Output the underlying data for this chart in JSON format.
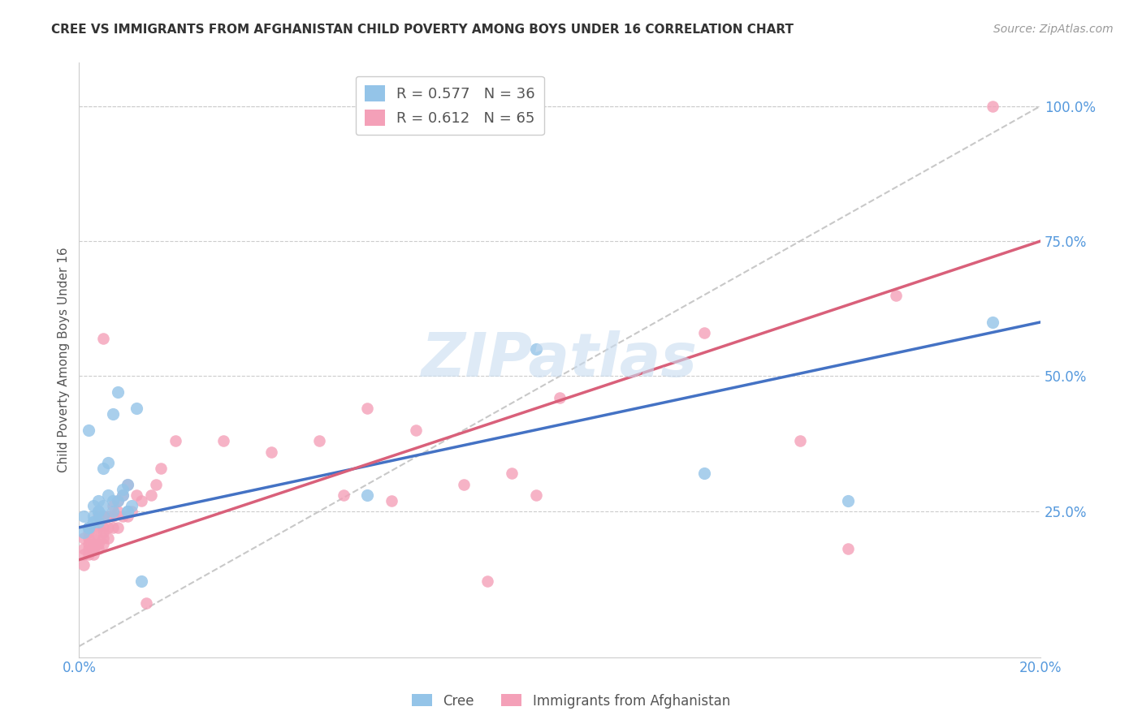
{
  "title": "CREE VS IMMIGRANTS FROM AFGHANISTAN CHILD POVERTY AMONG BOYS UNDER 16 CORRELATION CHART",
  "source": "Source: ZipAtlas.com",
  "ylabel": "Child Poverty Among Boys Under 16",
  "watermark": "ZIPatlas",
  "xlim": [
    0.0,
    0.2
  ],
  "ylim": [
    -0.02,
    1.08
  ],
  "xticks": [
    0.0,
    0.05,
    0.1,
    0.15,
    0.2
  ],
  "xtick_labels": [
    "0.0%",
    "",
    "",
    "",
    "20.0%"
  ],
  "ytick_right_positions": [
    0.25,
    0.5,
    0.75,
    1.0
  ],
  "ytick_right_labels": [
    "25.0%",
    "50.0%",
    "75.0%",
    "100.0%"
  ],
  "legend1_label": "R = 0.577   N = 36",
  "legend2_label": "R = 0.612   N = 65",
  "legend_color1": "#94C4E8",
  "legend_color2": "#F4A0B8",
  "title_color": "#333333",
  "source_color": "#999999",
  "grid_color": "#CCCCCC",
  "background_color": "#FFFFFF",
  "cree_color": "#94C4E8",
  "afg_color": "#F4A0B8",
  "trend_cree_color": "#4472C4",
  "trend_afg_color": "#D9607A",
  "diag_color": "#BBBBBB",
  "tick_label_color": "#5599DD",
  "cree_x": [
    0.001,
    0.001,
    0.002,
    0.002,
    0.002,
    0.003,
    0.003,
    0.003,
    0.003,
    0.004,
    0.004,
    0.004,
    0.004,
    0.005,
    0.005,
    0.005,
    0.006,
    0.006,
    0.007,
    0.007,
    0.007,
    0.008,
    0.008,
    0.009,
    0.009,
    0.01,
    0.01,
    0.01,
    0.011,
    0.012,
    0.013,
    0.06,
    0.095,
    0.13,
    0.16,
    0.19
  ],
  "cree_y": [
    0.21,
    0.24,
    0.22,
    0.22,
    0.4,
    0.23,
    0.23,
    0.24,
    0.26,
    0.23,
    0.25,
    0.25,
    0.27,
    0.24,
    0.26,
    0.33,
    0.28,
    0.34,
    0.25,
    0.27,
    0.43,
    0.27,
    0.47,
    0.28,
    0.29,
    0.25,
    0.25,
    0.3,
    0.26,
    0.44,
    0.12,
    0.28,
    0.55,
    0.32,
    0.27,
    0.6
  ],
  "afg_x": [
    0.001,
    0.001,
    0.001,
    0.001,
    0.002,
    0.002,
    0.002,
    0.002,
    0.002,
    0.002,
    0.003,
    0.003,
    0.003,
    0.003,
    0.003,
    0.003,
    0.004,
    0.004,
    0.004,
    0.004,
    0.004,
    0.005,
    0.005,
    0.005,
    0.005,
    0.005,
    0.005,
    0.006,
    0.006,
    0.006,
    0.007,
    0.007,
    0.007,
    0.008,
    0.008,
    0.008,
    0.009,
    0.009,
    0.01,
    0.01,
    0.011,
    0.012,
    0.013,
    0.014,
    0.015,
    0.016,
    0.017,
    0.02,
    0.03,
    0.04,
    0.05,
    0.055,
    0.06,
    0.065,
    0.07,
    0.08,
    0.085,
    0.09,
    0.095,
    0.1,
    0.13,
    0.15,
    0.16,
    0.17,
    0.19
  ],
  "afg_y": [
    0.15,
    0.17,
    0.18,
    0.2,
    0.17,
    0.18,
    0.19,
    0.2,
    0.21,
    0.22,
    0.17,
    0.18,
    0.18,
    0.19,
    0.2,
    0.22,
    0.18,
    0.19,
    0.2,
    0.22,
    0.24,
    0.19,
    0.2,
    0.21,
    0.22,
    0.24,
    0.57,
    0.2,
    0.22,
    0.24,
    0.22,
    0.24,
    0.26,
    0.22,
    0.25,
    0.27,
    0.24,
    0.28,
    0.24,
    0.3,
    0.25,
    0.28,
    0.27,
    0.08,
    0.28,
    0.3,
    0.33,
    0.38,
    0.38,
    0.36,
    0.38,
    0.28,
    0.44,
    0.27,
    0.4,
    0.3,
    0.12,
    0.32,
    0.28,
    0.46,
    0.58,
    0.38,
    0.18,
    0.65,
    1.0
  ],
  "trend_cree_x0": 0.0,
  "trend_cree_y0": 0.22,
  "trend_cree_x1": 0.2,
  "trend_cree_y1": 0.6,
  "trend_afg_x0": 0.0,
  "trend_afg_y0": 0.16,
  "trend_afg_x1": 0.2,
  "trend_afg_y1": 0.75
}
